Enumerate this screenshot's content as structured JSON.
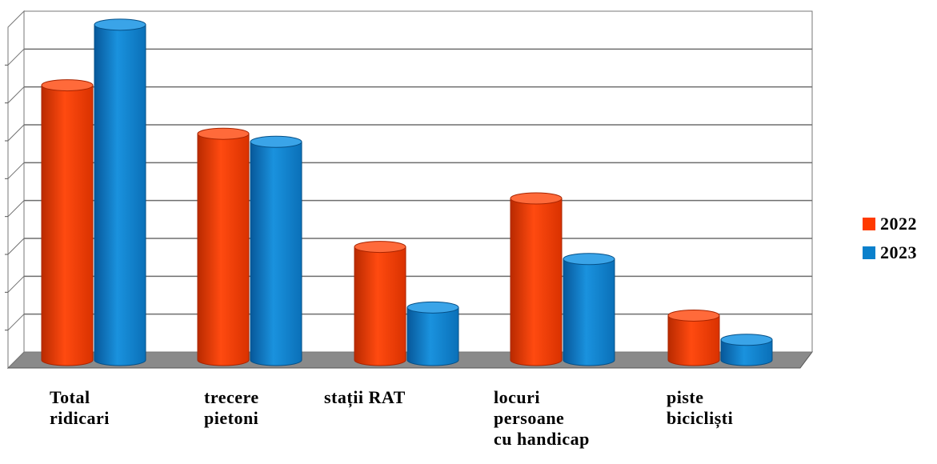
{
  "chart_data": {
    "type": "bar",
    "categories": [
      "Total\nridicari",
      "trecere\npietoni",
      "stații RAT",
      "locuri\npersoane\ncu handicap",
      "piste\nbicicliști"
    ],
    "series": [
      {
        "name": "2022",
        "values": [
          6.8,
          5.6,
          2.8,
          4.0,
          1.1
        ],
        "color": "#ff3a00"
      },
      {
        "name": "2023",
        "values": [
          8.3,
          5.4,
          1.3,
          2.5,
          0.5
        ],
        "color": "#0a80cc"
      }
    ],
    "ylim": [
      0,
      9
    ],
    "grid": true,
    "legend_position": "right"
  }
}
